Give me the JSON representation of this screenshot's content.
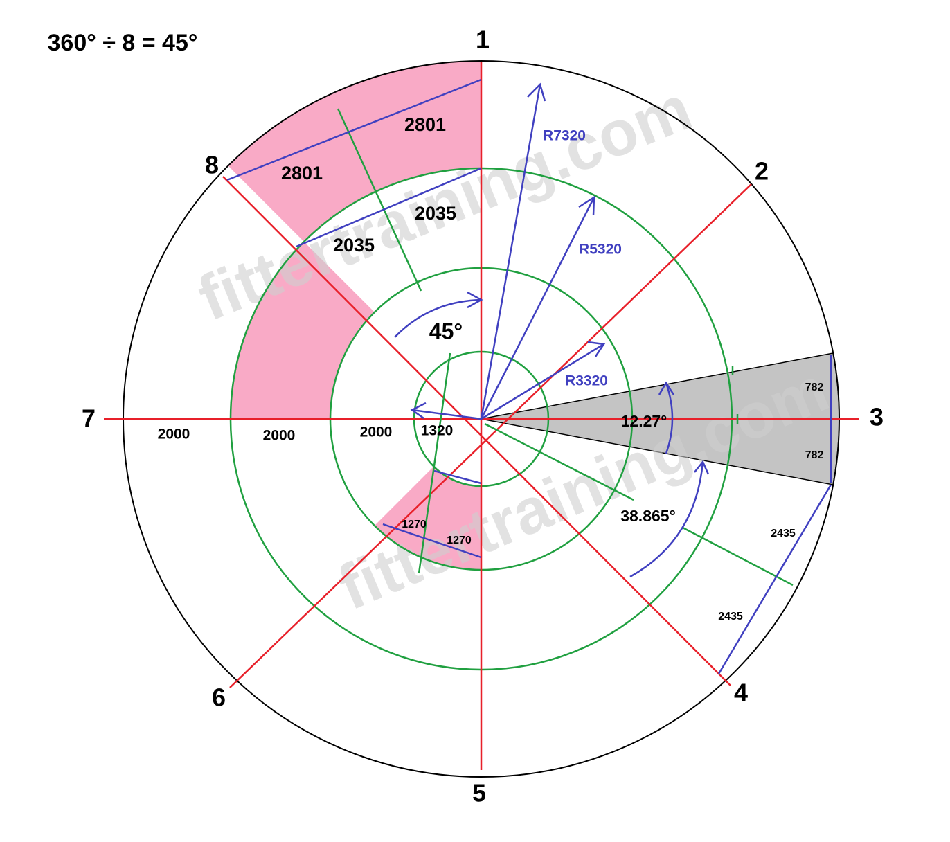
{
  "title": "360° ÷ 8 = 45°",
  "point_labels": [
    "1",
    "2",
    "3",
    "4",
    "5",
    "6",
    "7",
    "8"
  ],
  "dimensions": {
    "chord_outer": [
      "2801",
      "2801"
    ],
    "chord_middle": [
      "2035",
      "2035"
    ],
    "angle_step": "45°",
    "radii": [
      "R7320",
      "R5320",
      "R3320"
    ],
    "radial": [
      "2000",
      "2000",
      "2000",
      "1320"
    ],
    "angle_small": "12.27°",
    "half_chord": [
      "782",
      "782"
    ],
    "angle_large": "38.865°",
    "chord_right": [
      "2435",
      "2435"
    ],
    "chord_inner": [
      "1270",
      "1270"
    ]
  },
  "watermark": [
    "fittertraining.com",
    "fittertraining.com"
  ]
}
